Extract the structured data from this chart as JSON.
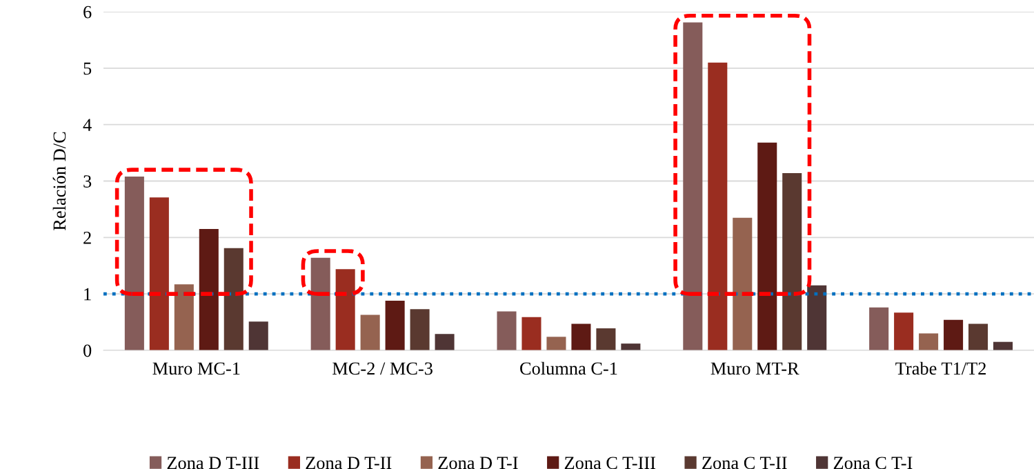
{
  "chart_data": {
    "type": "bar",
    "ylabel": "Relación D/C",
    "categories": [
      "Muro MC-1",
      "MC-2 / MC-3",
      "Columna C-1",
      "Muro MT-R",
      "Trabe T1/T2"
    ],
    "series": [
      {
        "name": "Zona D T-III",
        "color": "#855c5a",
        "values": [
          3.08,
          1.64,
          0.69,
          5.81,
          0.76
        ]
      },
      {
        "name": "Zona D T-II",
        "color": "#9a2d20",
        "values": [
          2.71,
          1.44,
          0.59,
          5.1,
          0.67
        ]
      },
      {
        "name": "Zona D T-I",
        "color": "#956350",
        "values": [
          1.17,
          0.63,
          0.24,
          2.35,
          0.3
        ]
      },
      {
        "name": "Zona C T-III",
        "color": "#5e1a14",
        "values": [
          2.15,
          0.88,
          0.47,
          3.68,
          0.54
        ]
      },
      {
        "name": "Zona C T-II",
        "color": "#5a3930",
        "values": [
          1.81,
          0.73,
          0.39,
          3.14,
          0.47
        ]
      },
      {
        "name": "Zona C T-I",
        "color": "#4f3535",
        "values": [
          0.51,
          0.29,
          0.12,
          1.15,
          0.15
        ]
      }
    ],
    "ylim": [
      0,
      6
    ],
    "yticks": [
      0,
      1,
      2,
      3,
      4,
      5,
      6
    ],
    "grid": "y",
    "legend": "bottom",
    "ref_lines": [
      {
        "axis": "y",
        "value": 1,
        "color": "#0070c0",
        "line_style": "dotted"
      }
    ]
  }
}
